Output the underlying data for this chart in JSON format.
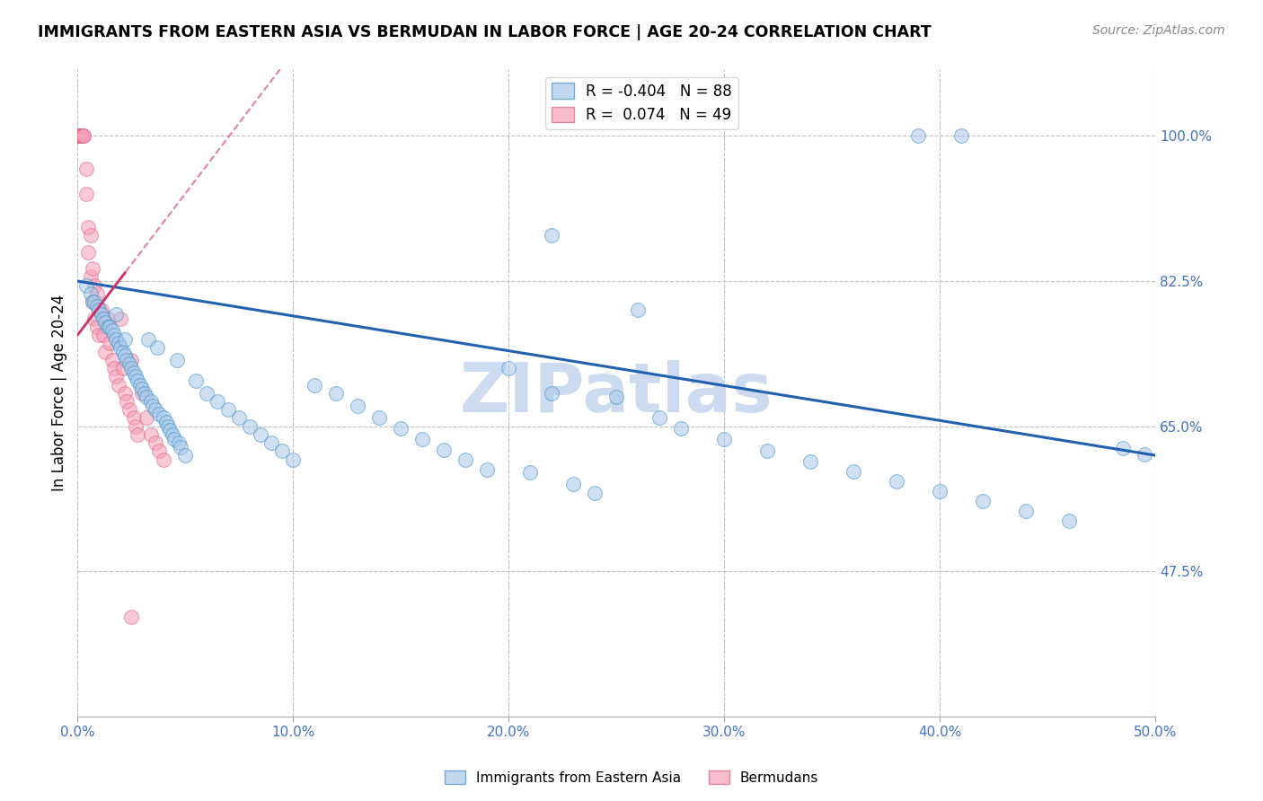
{
  "title": "IMMIGRANTS FROM EASTERN ASIA VS BERMUDAN IN LABOR FORCE | AGE 20-24 CORRELATION CHART",
  "source": "Source: ZipAtlas.com",
  "ylabel": "In Labor Force | Age 20-24",
  "xlim": [
    0.0,
    0.5
  ],
  "ylim": [
    0.3,
    1.08
  ],
  "xticks": [
    0.0,
    0.1,
    0.2,
    0.3,
    0.4,
    0.5
  ],
  "xticklabels": [
    "0.0%",
    "10.0%",
    "20.0%",
    "30.0%",
    "40.0%",
    "50.0%"
  ],
  "yticks": [
    0.475,
    0.65,
    0.825,
    1.0
  ],
  "yticklabels": [
    "47.5%",
    "65.0%",
    "82.5%",
    "100.0%"
  ],
  "blue_R": -0.404,
  "blue_N": 88,
  "pink_R": 0.074,
  "pink_N": 49,
  "blue_color": "#a8c8e8",
  "pink_color": "#f4a0b8",
  "blue_edge_color": "#4090c8",
  "pink_edge_color": "#e06080",
  "blue_line_color": "#2060b0",
  "pink_line_color": "#d03060",
  "axis_label_color": "#4472c4",
  "watermark": "ZIPatlas",
  "watermark_color": "#c8d8f0",
  "blue_line_x0": 0.0,
  "blue_line_y0": 0.825,
  "blue_line_x1": 0.5,
  "blue_line_y1": 0.615,
  "pink_line_x0": 0.0,
  "pink_line_y0": 0.76,
  "pink_line_x1": 0.022,
  "pink_line_y1": 0.835,
  "blue_x": [
    0.004,
    0.006,
    0.007,
    0.008,
    0.009,
    0.01,
    0.011,
    0.012,
    0.013,
    0.014,
    0.015,
    0.016,
    0.017,
    0.018,
    0.018,
    0.019,
    0.02,
    0.021,
    0.022,
    0.022,
    0.023,
    0.024,
    0.025,
    0.026,
    0.027,
    0.028,
    0.029,
    0.03,
    0.031,
    0.032,
    0.033,
    0.034,
    0.035,
    0.036,
    0.037,
    0.038,
    0.04,
    0.041,
    0.042,
    0.043,
    0.044,
    0.045,
    0.046,
    0.047,
    0.048,
    0.05,
    0.055,
    0.06,
    0.065,
    0.07,
    0.075,
    0.08,
    0.085,
    0.09,
    0.095,
    0.1,
    0.11,
    0.12,
    0.13,
    0.14,
    0.15,
    0.16,
    0.17,
    0.18,
    0.19,
    0.2,
    0.21,
    0.22,
    0.23,
    0.24,
    0.25,
    0.27,
    0.28,
    0.3,
    0.32,
    0.34,
    0.36,
    0.38,
    0.4,
    0.42,
    0.44,
    0.46,
    0.485,
    0.495,
    0.39,
    0.41,
    0.22,
    0.26
  ],
  "blue_y": [
    0.82,
    0.81,
    0.8,
    0.8,
    0.795,
    0.79,
    0.785,
    0.78,
    0.775,
    0.77,
    0.77,
    0.765,
    0.76,
    0.755,
    0.785,
    0.75,
    0.745,
    0.74,
    0.735,
    0.755,
    0.73,
    0.725,
    0.72,
    0.715,
    0.71,
    0.705,
    0.7,
    0.695,
    0.69,
    0.685,
    0.755,
    0.68,
    0.675,
    0.67,
    0.745,
    0.665,
    0.66,
    0.655,
    0.65,
    0.645,
    0.64,
    0.635,
    0.73,
    0.63,
    0.625,
    0.615,
    0.705,
    0.69,
    0.68,
    0.67,
    0.66,
    0.65,
    0.64,
    0.63,
    0.62,
    0.61,
    0.7,
    0.69,
    0.675,
    0.66,
    0.648,
    0.635,
    0.622,
    0.61,
    0.598,
    0.72,
    0.595,
    0.69,
    0.58,
    0.57,
    0.685,
    0.66,
    0.648,
    0.635,
    0.62,
    0.608,
    0.596,
    0.584,
    0.572,
    0.56,
    0.548,
    0.536,
    0.624,
    0.616,
    1.0,
    1.0,
    0.88,
    0.79
  ],
  "pink_x": [
    0.001,
    0.001,
    0.001,
    0.001,
    0.001,
    0.002,
    0.002,
    0.002,
    0.003,
    0.003,
    0.004,
    0.004,
    0.005,
    0.005,
    0.006,
    0.006,
    0.007,
    0.007,
    0.008,
    0.008,
    0.009,
    0.009,
    0.01,
    0.01,
    0.011,
    0.012,
    0.013,
    0.014,
    0.015,
    0.016,
    0.017,
    0.018,
    0.019,
    0.02,
    0.021,
    0.022,
    0.023,
    0.024,
    0.025,
    0.026,
    0.027,
    0.028,
    0.03,
    0.032,
    0.034,
    0.036,
    0.038,
    0.04,
    0.025
  ],
  "pink_y": [
    1.0,
    1.0,
    1.0,
    1.0,
    1.0,
    1.0,
    1.0,
    1.0,
    1.0,
    1.0,
    0.96,
    0.93,
    0.89,
    0.86,
    0.83,
    0.88,
    0.84,
    0.8,
    0.82,
    0.78,
    0.77,
    0.81,
    0.79,
    0.76,
    0.79,
    0.76,
    0.74,
    0.78,
    0.75,
    0.73,
    0.72,
    0.71,
    0.7,
    0.78,
    0.72,
    0.69,
    0.68,
    0.67,
    0.73,
    0.66,
    0.65,
    0.64,
    0.69,
    0.66,
    0.64,
    0.63,
    0.62,
    0.61,
    0.42
  ]
}
